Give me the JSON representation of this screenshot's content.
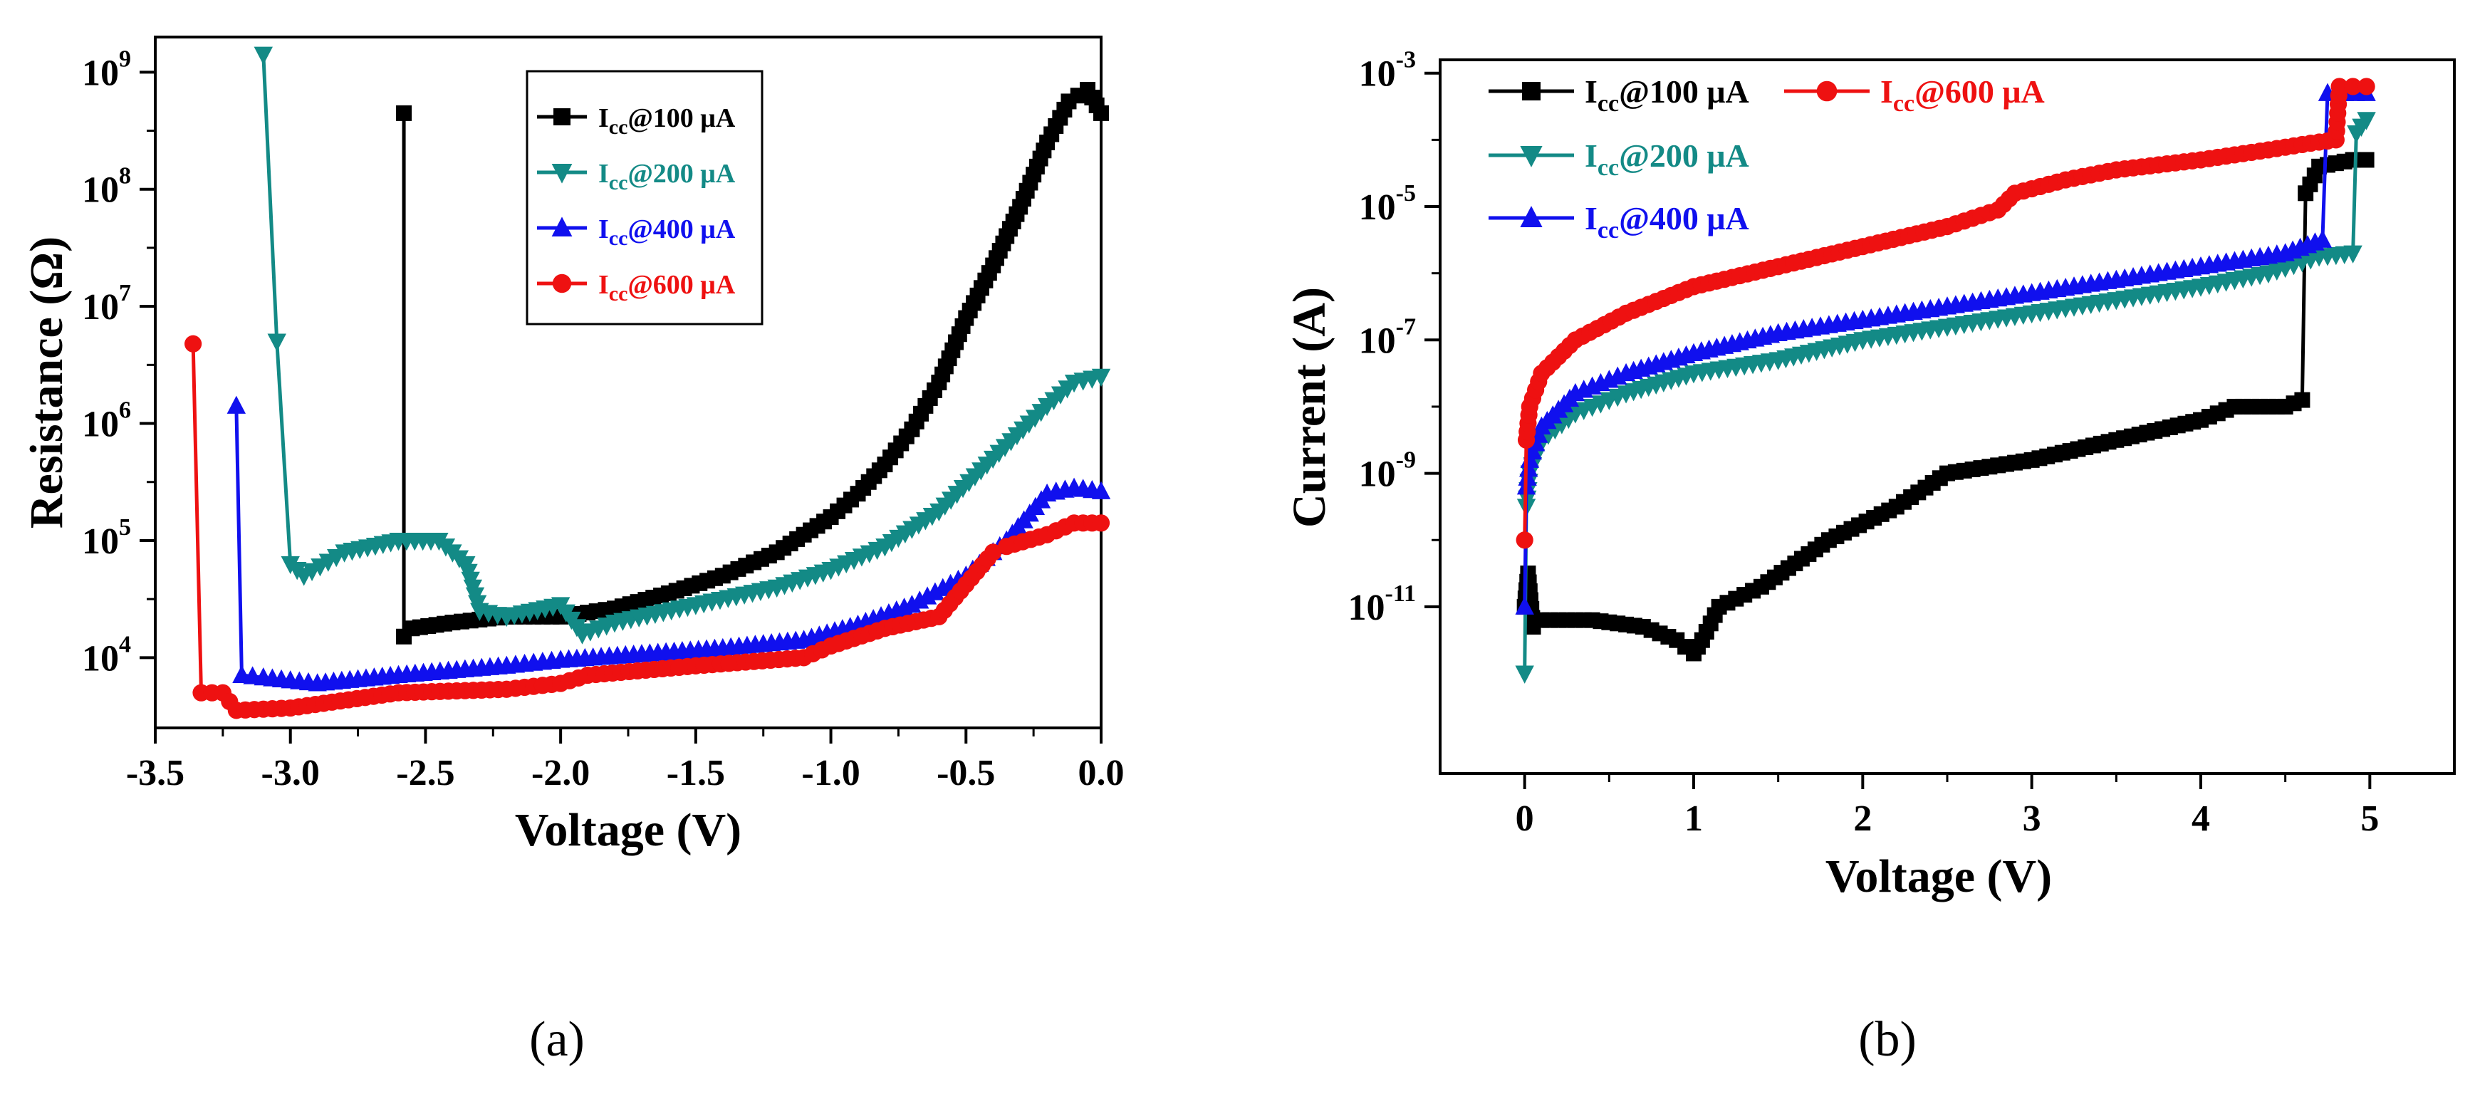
{
  "chart_data": [
    {
      "type": "line",
      "panel_label": "(a)",
      "xlabel": "Voltage (V)",
      "ylabel": "Resistance (Ω)",
      "xlim": [
        -3.5,
        0.0
      ],
      "ylim_log10": [
        3.4,
        9.3
      ],
      "y_scale": "log",
      "x_ticks": [
        "-3.5",
        "-3.0",
        "-2.5",
        "-2.0",
        "-1.5",
        "-1.0",
        "-0.5",
        "0.0"
      ],
      "y_ticks": [
        {
          "base": "10",
          "exp": "4"
        },
        {
          "base": "10",
          "exp": "5"
        },
        {
          "base": "10",
          "exp": "6"
        },
        {
          "base": "10",
          "exp": "7"
        },
        {
          "base": "10",
          "exp": "8"
        },
        {
          "base": "10",
          "exp": "9"
        }
      ],
      "legend_position": "top-center",
      "series": [
        {
          "name": "Icc@100 μA",
          "main": "I",
          "sub": "cc",
          "rest": "@100 μA",
          "color": "#000000",
          "marker": "square",
          "x": [
            -2.58,
            -2.58,
            -2.55,
            -2.4,
            -2.2,
            -2.0,
            -1.8,
            -1.6,
            -1.4,
            -1.2,
            -1.0,
            -0.9,
            -0.8,
            -0.7,
            -0.6,
            -0.5,
            -0.4,
            -0.3,
            -0.2,
            -0.12,
            -0.05,
            0.0
          ],
          "log10y": [
            8.65,
            4.18,
            4.25,
            4.3,
            4.35,
            4.35,
            4.42,
            4.55,
            4.7,
            4.9,
            5.2,
            5.4,
            5.65,
            5.95,
            6.35,
            6.9,
            7.35,
            7.85,
            8.4,
            8.75,
            8.85,
            8.65
          ]
        },
        {
          "name": "Icc@200 μA",
          "main": "I",
          "sub": "cc",
          "rest": "@200 μA",
          "color": "#138a86",
          "marker": "triangle-down",
          "x": [
            -3.1,
            -3.05,
            -3.0,
            -2.95,
            -2.8,
            -2.6,
            -2.45,
            -2.35,
            -2.3,
            -2.2,
            -2.0,
            -1.92,
            -1.8,
            -1.5,
            -1.2,
            -1.0,
            -0.8,
            -0.6,
            -0.4,
            -0.2,
            -0.1,
            0.0
          ],
          "log10y": [
            9.15,
            6.7,
            4.8,
            4.7,
            4.9,
            5.0,
            5.0,
            4.8,
            4.4,
            4.35,
            4.45,
            4.2,
            4.3,
            4.45,
            4.6,
            4.75,
            4.95,
            5.25,
            5.7,
            6.15,
            6.35,
            6.4
          ]
        },
        {
          "name": "Icc@400 μA",
          "main": "I",
          "sub": "cc",
          "rest": "@400 μA",
          "color": "#1010ee",
          "marker": "triangle-up",
          "x": [
            -3.2,
            -3.18,
            -3.1,
            -2.9,
            -2.6,
            -2.2,
            -2.0,
            -1.7,
            -1.4,
            -1.1,
            -0.9,
            -0.7,
            -0.5,
            -0.35,
            -0.2,
            -0.1,
            0.0
          ],
          "log10y": [
            6.15,
            3.85,
            3.83,
            3.78,
            3.85,
            3.93,
            3.98,
            4.03,
            4.08,
            4.15,
            4.28,
            4.45,
            4.7,
            5.0,
            5.4,
            5.45,
            5.42
          ]
        },
        {
          "name": "Icc@600 μA",
          "main": "I",
          "sub": "cc",
          "rest": "@600 μA",
          "color": "#ee1111",
          "marker": "circle",
          "x": [
            -3.36,
            -3.33,
            -3.25,
            -3.2,
            -3.0,
            -2.6,
            -2.2,
            -2.0,
            -1.9,
            -1.5,
            -1.1,
            -1.0,
            -0.8,
            -0.6,
            -0.4,
            -0.35,
            -0.2,
            -0.1,
            0.0
          ],
          "log10y": [
            6.68,
            3.7,
            3.7,
            3.55,
            3.57,
            3.7,
            3.73,
            3.78,
            3.85,
            3.93,
            4.0,
            4.1,
            4.25,
            4.35,
            4.9,
            4.95,
            5.05,
            5.15,
            5.15
          ]
        }
      ]
    },
    {
      "type": "line",
      "panel_label": "(b)",
      "xlabel": "Voltage (V)",
      "ylabel": "Current (A)",
      "xlim": [
        -0.5,
        5.5
      ],
      "ylim_log10": [
        -13.5,
        -2.8
      ],
      "y_scale": "log",
      "x_ticks": [
        "0",
        "1",
        "2",
        "3",
        "4",
        "5"
      ],
      "y_ticks": [
        {
          "base": "10",
          "exp": "-11"
        },
        {
          "base": "10",
          "exp": "-9"
        },
        {
          "base": "10",
          "exp": "-7"
        },
        {
          "base": "10",
          "exp": "-5"
        },
        {
          "base": "10",
          "exp": "-3"
        }
      ],
      "legend_position": "top-left",
      "series": [
        {
          "name": "Icc@100 μA",
          "main": "I",
          "sub": "cc",
          "rest": "@100 μA",
          "color": "#000000",
          "marker": "square",
          "x": [
            0.0,
            0.02,
            0.05,
            0.1,
            0.4,
            0.7,
            0.9,
            1.0,
            1.05,
            1.15,
            1.4,
            1.8,
            2.2,
            2.5,
            3.0,
            3.5,
            4.0,
            4.2,
            4.5,
            4.6,
            4.62,
            4.7,
            4.9,
            4.98
          ],
          "log10y": [
            -11.0,
            -10.5,
            -11.3,
            -11.2,
            -11.2,
            -11.3,
            -11.5,
            -11.7,
            -11.5,
            -11.0,
            -10.7,
            -10.0,
            -9.5,
            -9.0,
            -8.8,
            -8.5,
            -8.2,
            -8.0,
            -8.0,
            -7.9,
            -4.8,
            -4.4,
            -4.3,
            -4.3
          ]
        },
        {
          "name": "Icc@200 μA",
          "main": "I",
          "sub": "cc",
          "rest": "@200 μA",
          "color": "#138a86",
          "marker": "triangle-down",
          "x": [
            0.0,
            0.01,
            0.03,
            0.1,
            0.3,
            0.6,
            1.0,
            1.5,
            2.0,
            2.5,
            3.0,
            3.5,
            4.0,
            4.4,
            4.7,
            4.9,
            4.92,
            4.98
          ],
          "log10y": [
            -12.0,
            -9.5,
            -9.0,
            -8.5,
            -8.1,
            -7.8,
            -7.5,
            -7.3,
            -7.0,
            -6.8,
            -6.6,
            -6.4,
            -6.2,
            -6.0,
            -5.75,
            -5.7,
            -3.9,
            -3.7
          ]
        },
        {
          "name": "Icc@400 μA",
          "main": "I",
          "sub": "cc",
          "rest": "@400 μA",
          "color": "#1010ee",
          "marker": "triangle-up",
          "x": [
            0.0,
            0.01,
            0.03,
            0.1,
            0.3,
            0.6,
            1.0,
            1.5,
            2.0,
            2.5,
            3.0,
            3.5,
            4.0,
            4.5,
            4.72,
            4.75,
            4.85,
            4.98
          ],
          "log10y": [
            -11.0,
            -9.2,
            -8.8,
            -8.3,
            -7.8,
            -7.5,
            -7.2,
            -6.9,
            -6.7,
            -6.5,
            -6.3,
            -6.1,
            -5.9,
            -5.7,
            -5.5,
            -3.3,
            -3.3,
            -3.3
          ]
        },
        {
          "name": "Icc@600 μA",
          "main": "I",
          "sub": "cc",
          "rest": "@600 μA",
          "color": "#ee1111",
          "marker": "circle",
          "x": [
            0.0,
            0.01,
            0.03,
            0.1,
            0.3,
            0.6,
            1.0,
            1.5,
            2.0,
            2.5,
            2.8,
            2.9,
            3.2,
            3.5,
            4.0,
            4.4,
            4.65,
            4.8,
            4.82,
            4.9,
            4.98
          ],
          "log10y": [
            -10.0,
            -8.5,
            -8.0,
            -7.5,
            -7.0,
            -6.6,
            -6.2,
            -5.9,
            -5.6,
            -5.3,
            -5.05,
            -4.8,
            -4.6,
            -4.45,
            -4.3,
            -4.15,
            -4.05,
            -4.0,
            -3.2,
            -3.2,
            -3.2
          ]
        }
      ]
    }
  ]
}
